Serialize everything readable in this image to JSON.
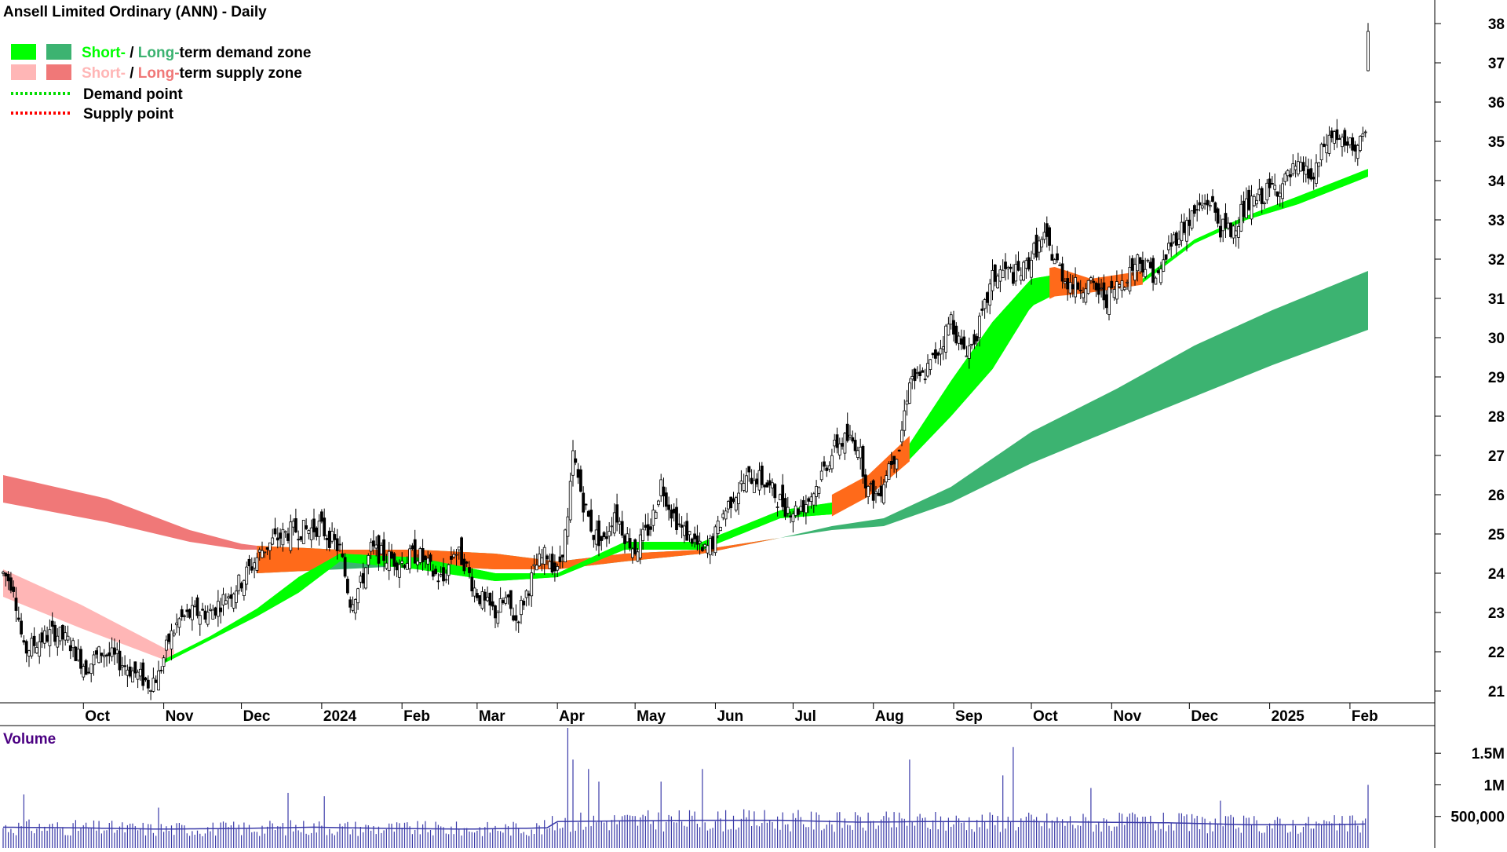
{
  "title": "Ansell Limited Ordinary (ANN) - Daily",
  "legend": [
    {
      "label_a": "Short-",
      "sep": " / ",
      "label_b": "Long-",
      "rest": "term demand zone",
      "color_a": "#00ff00",
      "color_b": "#3cb371",
      "text_a_color": "#00ff00",
      "text_b_color": "#3cb371"
    },
    {
      "label_a": "Short-",
      "sep": " / ",
      "label_b": "Long-",
      "rest": "term supply zone",
      "color_a": "#ffb6b6",
      "color_b": "#f07878",
      "text_a_color": "#ffb6b6",
      "text_b_color": "#f07878"
    },
    {
      "line_label": "Demand point",
      "line_color": "#00dd00"
    },
    {
      "line_label": "Supply point",
      "line_color": "#ff0000"
    }
  ],
  "volume_label": "Volume",
  "colors": {
    "short_demand": "#00ff00",
    "long_demand": "#3cb371",
    "short_supply": "#ffb6b6",
    "long_supply": "#f07878",
    "overlap": "#ff6a1a",
    "volume_bar": "#3a3aa8",
    "volume_avg": "#3a3aa8",
    "volume_label": "#4b0082"
  },
  "chart_data": {
    "type": "candlestick",
    "price_axis": {
      "min": 20.7,
      "max": 38.6,
      "ticks": [
        21,
        22,
        23,
        24,
        25,
        26,
        27,
        28,
        29,
        30,
        31,
        32,
        33,
        34,
        35,
        36,
        37,
        38
      ]
    },
    "volume_axis": {
      "min": 0,
      "max": 1900000,
      "ticks": [
        500000,
        1000000,
        1500000
      ],
      "tick_labels": [
        "500,000",
        "1M",
        "1.5M"
      ]
    },
    "time_axis": {
      "day_start": 0,
      "day_end": 537,
      "months": [
        {
          "label": "Oct",
          "day": 31
        },
        {
          "label": "Nov",
          "day": 62
        },
        {
          "label": "Dec",
          "day": 92
        },
        {
          "label": "2024",
          "day": 123
        },
        {
          "label": "Feb",
          "day": 154
        },
        {
          "label": "Mar",
          "day": 183
        },
        {
          "label": "Apr",
          "day": 214
        },
        {
          "label": "May",
          "day": 244
        },
        {
          "label": "Jun",
          "day": 275
        },
        {
          "label": "Jul",
          "day": 305
        },
        {
          "label": "Aug",
          "day": 336
        },
        {
          "label": "Sep",
          "day": 367
        },
        {
          "label": "Oct",
          "day": 397
        },
        {
          "label": "Nov",
          "day": 428
        },
        {
          "label": "Dec",
          "day": 458
        },
        {
          "label": "2025",
          "day": 489
        },
        {
          "label": "Feb",
          "day": 520
        }
      ]
    },
    "price_path": [
      [
        0,
        24.0
      ],
      [
        4,
        23.7
      ],
      [
        8,
        22.0
      ],
      [
        14,
        22.3
      ],
      [
        20,
        22.5
      ],
      [
        26,
        22.2
      ],
      [
        32,
        21.6
      ],
      [
        38,
        22.0
      ],
      [
        44,
        21.8
      ],
      [
        50,
        21.5
      ],
      [
        56,
        21.2
      ],
      [
        60,
        21.4
      ],
      [
        64,
        22.3
      ],
      [
        68,
        22.8
      ],
      [
        74,
        23.0
      ],
      [
        80,
        23.0
      ],
      [
        86,
        23.4
      ],
      [
        92,
        23.8
      ],
      [
        96,
        24.2
      ],
      [
        100,
        24.6
      ],
      [
        106,
        24.9
      ],
      [
        112,
        25.1
      ],
      [
        118,
        25.1
      ],
      [
        122,
        25.2
      ],
      [
        126,
        24.9
      ],
      [
        130,
        24.6
      ],
      [
        134,
        23.3
      ],
      [
        138,
        23.7
      ],
      [
        142,
        24.6
      ],
      [
        148,
        24.4
      ],
      [
        154,
        24.3
      ],
      [
        160,
        24.5
      ],
      [
        166,
        24.0
      ],
      [
        170,
        23.8
      ],
      [
        174,
        24.6
      ],
      [
        178,
        24.3
      ],
      [
        182,
        23.6
      ],
      [
        186,
        23.2
      ],
      [
        190,
        23.0
      ],
      [
        194,
        23.3
      ],
      [
        198,
        22.8
      ],
      [
        202,
        23.5
      ],
      [
        206,
        24.2
      ],
      [
        210,
        24.5
      ],
      [
        214,
        24.0
      ],
      [
        218,
        25.3
      ],
      [
        220,
        27.0
      ],
      [
        224,
        25.8
      ],
      [
        228,
        25.0
      ],
      [
        232,
        24.8
      ],
      [
        236,
        25.6
      ],
      [
        240,
        25.0
      ],
      [
        244,
        24.6
      ],
      [
        250,
        25.2
      ],
      [
        254,
        26.3
      ],
      [
        258,
        25.6
      ],
      [
        262,
        25.1
      ],
      [
        266,
        24.9
      ],
      [
        270,
        24.5
      ],
      [
        274,
        24.8
      ],
      [
        278,
        25.5
      ],
      [
        282,
        26.0
      ],
      [
        286,
        26.3
      ],
      [
        290,
        26.5
      ],
      [
        294,
        26.3
      ],
      [
        298,
        26.0
      ],
      [
        302,
        25.7
      ],
      [
        306,
        25.6
      ],
      [
        310,
        25.8
      ],
      [
        314,
        26.2
      ],
      [
        318,
        26.8
      ],
      [
        322,
        27.3
      ],
      [
        326,
        27.4
      ],
      [
        330,
        27.3
      ],
      [
        334,
        26.1
      ],
      [
        338,
        26.0
      ],
      [
        342,
        26.8
      ],
      [
        346,
        27.2
      ],
      [
        350,
        29.0
      ],
      [
        354,
        28.9
      ],
      [
        358,
        29.3
      ],
      [
        362,
        29.8
      ],
      [
        366,
        30.5
      ],
      [
        370,
        29.7
      ],
      [
        374,
        29.8
      ],
      [
        378,
        30.5
      ],
      [
        382,
        31.5
      ],
      [
        386,
        31.7
      ],
      [
        390,
        31.6
      ],
      [
        394,
        31.7
      ],
      [
        398,
        32.2
      ],
      [
        402,
        32.5
      ],
      [
        406,
        32.0
      ],
      [
        410,
        31.5
      ],
      [
        414,
        31.3
      ],
      [
        418,
        31.4
      ],
      [
        422,
        31.2
      ],
      [
        426,
        31.0
      ],
      [
        430,
        31.3
      ],
      [
        434,
        31.6
      ],
      [
        438,
        32.0
      ],
      [
        442,
        31.8
      ],
      [
        446,
        31.5
      ],
      [
        450,
        32.3
      ],
      [
        454,
        32.7
      ],
      [
        458,
        33.0
      ],
      [
        462,
        33.3
      ],
      [
        466,
        33.5
      ],
      [
        470,
        32.8
      ],
      [
        474,
        32.7
      ],
      [
        478,
        33.2
      ],
      [
        482,
        33.4
      ],
      [
        486,
        33.6
      ],
      [
        490,
        33.8
      ],
      [
        494,
        33.9
      ],
      [
        498,
        34.2
      ],
      [
        502,
        34.3
      ],
      [
        506,
        34.0
      ],
      [
        510,
        34.9
      ],
      [
        514,
        35.2
      ],
      [
        518,
        34.8
      ],
      [
        522,
        34.9
      ],
      [
        526,
        35.0
      ],
      [
        527,
        37.7
      ]
    ],
    "volume_path": [
      [
        0,
        330000
      ],
      [
        30,
        320000
      ],
      [
        60,
        300000
      ],
      [
        90,
        310000
      ],
      [
        120,
        330000
      ],
      [
        150,
        310000
      ],
      [
        180,
        300000
      ],
      [
        210,
        320000
      ],
      [
        214,
        420000
      ],
      [
        240,
        430000
      ],
      [
        270,
        440000
      ],
      [
        300,
        440000
      ],
      [
        330,
        410000
      ],
      [
        360,
        420000
      ],
      [
        390,
        420000
      ],
      [
        420,
        410000
      ],
      [
        450,
        400000
      ],
      [
        480,
        370000
      ],
      [
        510,
        370000
      ],
      [
        527,
        380000
      ]
    ],
    "volume_spikes": [
      [
        8,
        850000
      ],
      [
        60,
        640000
      ],
      [
        110,
        870000
      ],
      [
        124,
        820000
      ],
      [
        218,
        1900000
      ],
      [
        220,
        1400000
      ],
      [
        226,
        1250000
      ],
      [
        230,
        1050000
      ],
      [
        254,
        1050000
      ],
      [
        270,
        1250000
      ],
      [
        350,
        1400000
      ],
      [
        386,
        1150000
      ],
      [
        390,
        1600000
      ],
      [
        420,
        950000
      ],
      [
        470,
        750000
      ],
      [
        527,
        1000000
      ]
    ],
    "zones": {
      "long_supply": {
        "x": [
          0,
          40,
          72,
          92,
          98
        ],
        "top": [
          25.8,
          25.3,
          24.8,
          24.6,
          24.6
        ],
        "bottom": [
          26.5,
          25.9,
          25.1,
          24.75,
          24.7
        ]
      },
      "short_supply": {
        "x": [
          0,
          30,
          62,
          66
        ],
        "top": [
          23.4,
          22.6,
          21.8,
          21.9
        ],
        "bottom": [
          24.1,
          23.2,
          22.1,
          22.05
        ]
      },
      "short_demand": {
        "x": [
          62,
          80,
          98,
          114,
          130,
          160,
          190,
          214,
          240,
          270,
          300,
          320,
          334,
          350,
          366,
          382,
          397,
          406,
          420,
          440,
          460,
          480,
          500,
          527
        ],
        "top": [
          21.8,
          22.4,
          23.1,
          23.9,
          24.5,
          24.4,
          24.0,
          24.0,
          24.8,
          24.8,
          25.6,
          25.8,
          26.3,
          27.3,
          28.9,
          30.4,
          31.5,
          31.6,
          31.3,
          31.5,
          32.5,
          33.1,
          33.6,
          34.3
        ],
        "bottom": [
          21.7,
          22.3,
          22.9,
          23.5,
          24.3,
          24.1,
          23.8,
          23.9,
          24.6,
          24.6,
          25.4,
          25.5,
          26.0,
          26.9,
          28.0,
          29.2,
          30.8,
          31.1,
          31.2,
          31.4,
          32.4,
          33.0,
          33.4,
          34.1
        ]
      },
      "long_demand": {
        "x": [
          98,
          130,
          160,
          190,
          214,
          240,
          270,
          300,
          320,
          340,
          366,
          397,
          430,
          460,
          490,
          527
        ],
        "top": [
          24.7,
          24.6,
          24.6,
          24.5,
          24.3,
          24.5,
          24.6,
          24.9,
          25.2,
          25.4,
          26.2,
          27.6,
          28.7,
          29.8,
          30.7,
          31.7
        ],
        "bottom": [
          24.0,
          24.1,
          24.2,
          24.1,
          24.1,
          24.3,
          24.5,
          24.9,
          25.1,
          25.2,
          25.8,
          26.8,
          27.7,
          28.5,
          29.3,
          30.2
        ]
      }
    }
  }
}
